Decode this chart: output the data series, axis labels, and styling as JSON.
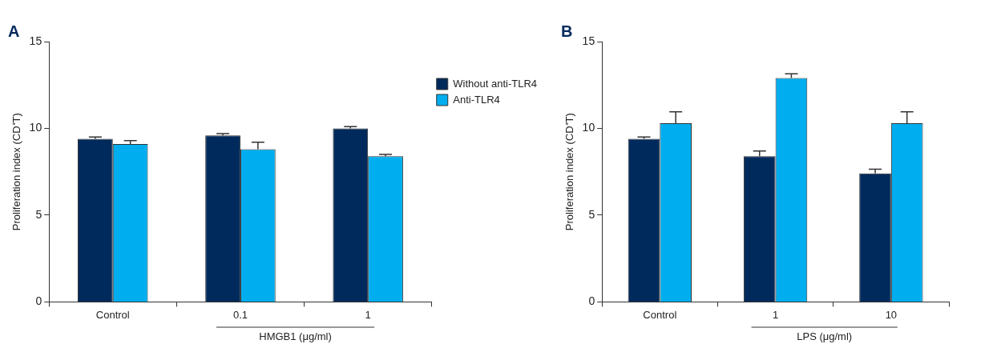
{
  "chart_data": [
    {
      "type": "bar",
      "title": "A",
      "categories": [
        "Control",
        "0.1",
        "1"
      ],
      "xlabel": "HMGB1 (μg/ml)",
      "ylabel": "Proliferation index (CD⁺T)",
      "ylim": [
        0,
        15
      ],
      "yticks": [
        0,
        5,
        10,
        15
      ],
      "grid": false,
      "legend": "top right",
      "series": [
        {
          "name": "Without anti-TLR4",
          "color": "#002a5c",
          "values": [
            9.4,
            9.6,
            10.0
          ],
          "errors": [
            0.1,
            0.1,
            0.1
          ]
        },
        {
          "name": "Anti-TLR4",
          "color": "#00aeef",
          "values": [
            9.1,
            8.8,
            8.4
          ],
          "errors": [
            0.2,
            0.4,
            0.1
          ]
        }
      ]
    },
    {
      "type": "bar",
      "title": "B",
      "categories": [
        "Control",
        "1",
        "10"
      ],
      "xlabel": "LPS (μg/ml)",
      "ylabel": "Proliferation index (CD⁺T)",
      "ylim": [
        0,
        15
      ],
      "yticks": [
        0,
        5,
        10,
        15
      ],
      "grid": false,
      "legend": false,
      "series": [
        {
          "color": "#002a5c",
          "values": [
            9.4,
            8.4,
            7.4
          ],
          "errors": [
            0.1,
            0.3,
            0.25
          ]
        },
        {
          "color": "#00aeef",
          "values": [
            10.3,
            12.9,
            10.3
          ],
          "errors": [
            0.65,
            0.25,
            0.65
          ]
        }
      ]
    }
  ]
}
